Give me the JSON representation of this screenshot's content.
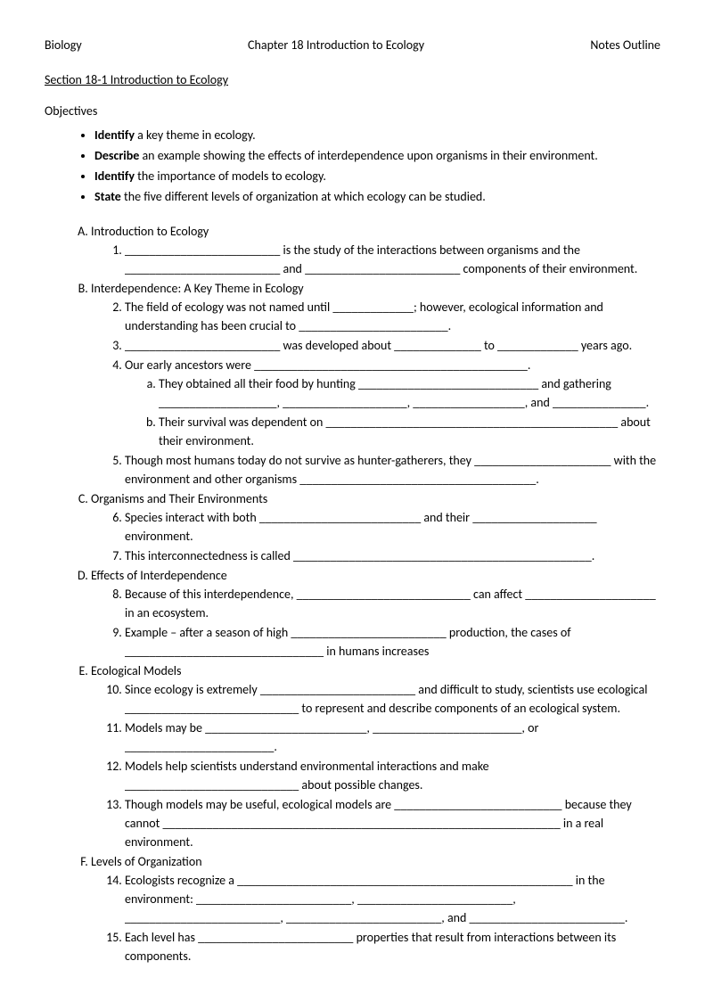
{
  "header": {
    "left": "Biology",
    "center": "Chapter 18 Introduction to Ecology",
    "right": "Notes Outline"
  },
  "section_title": "Section 18-1 Introduction to Ecology",
  "objectives_label": "Objectives",
  "objectives": [
    {
      "verb": "Identify",
      "rest": " a key theme in ecology."
    },
    {
      "verb": "Describe",
      "rest": " an example showing the effects of interdependence upon organisms in their environment."
    },
    {
      "verb": "Identify",
      "rest": " the importance of models to ecology."
    },
    {
      "verb": "State",
      "rest": " the five different levels of organization at which ecology can be studied."
    }
  ],
  "outline": [
    {
      "title": "Introduction to Ecology",
      "start": 1,
      "items": [
        {
          "text": "_________________________ is the study of the interactions between organisms and the _________________________ and _________________________ components of their environment."
        }
      ]
    },
    {
      "title": "Interdependence: A Key Theme in Ecology",
      "start": 2,
      "items": [
        {
          "text": "The field of ecology was not named until _____________; however, ecological information and understanding has been crucial to ________________________."
        },
        {
          "text": "_________________________ was developed about ______________ to _____________ years ago."
        },
        {
          "text": "Our early ancestors were ____________________________________________.",
          "subs": [
            {
              "text": "They obtained all their food by hunting _____________________________ and gathering ___________________, ____________________, __________________, and _______________."
            },
            {
              "text": "Their survival was dependent on _______________________________________________   about their environment."
            }
          ]
        },
        {
          "text": "Though most humans today do not survive as hunter-gatherers, they ______________________ with the environment and other organisms ______________________________________."
        }
      ]
    },
    {
      "title": "Organisms and Their Environments",
      "start": 6,
      "items": [
        {
          "text": "Species interact with both __________________________ and their ____________________ environment."
        },
        {
          "text": "This interconnectedness is called ________________________________________________."
        }
      ]
    },
    {
      "title": "Effects of Interdependence",
      "start": 8,
      "items": [
        {
          "text": "Because of this interdependence, ____________________________ can affect _____________________ in an ecosystem."
        },
        {
          "text": "Example – after a season of high _________________________ production, the cases of ________________________________ in humans increases"
        }
      ]
    },
    {
      "title": "Ecological Models",
      "start": 10,
      "items": [
        {
          "text": "Since ecology is extremely _________________________ and difficult to study, scientists use ecological ____________________________ to represent and describe components of an ecological system."
        },
        {
          "text": "Models may be __________________________, ________________________, or ________________________."
        },
        {
          "text": "Models help scientists understand environmental interactions and make ____________________________ about possible changes."
        },
        {
          "text": "Though models may be useful, ecological models are ___________________________ because they cannot ________________________________________________________________ in a real environment."
        }
      ]
    },
    {
      "title": "Levels of Organization",
      "start": 14,
      "items": [
        {
          "text": "Ecologists recognize a ______________________________________________________ in the environment: _________________________, _________________________, _________________________, _________________________, and _________________________."
        },
        {
          "text": "Each level has _________________________ properties that result from interactions between its components."
        }
      ]
    }
  ]
}
